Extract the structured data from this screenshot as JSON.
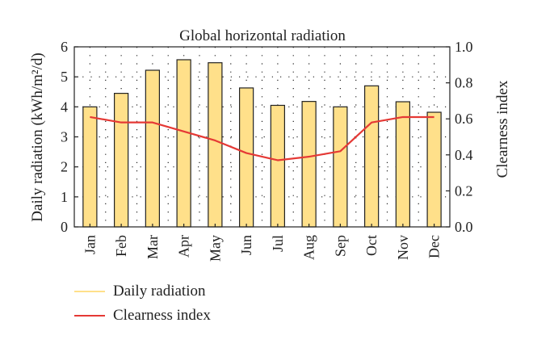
{
  "chart_data": {
    "type": "bar",
    "title": "Global horizontal radiation",
    "categories": [
      "Jan",
      "Feb",
      "Mar",
      "Apr",
      "May",
      "Jun",
      "Jul",
      "Aug",
      "Sep",
      "Oct",
      "Nov",
      "Dec"
    ],
    "ylabel_left": "Daily radiation (kWh/m²/d)",
    "ylabel_right": "Clearness index",
    "ylim_left": [
      0,
      6
    ],
    "ylim_right": [
      0.0,
      1.0
    ],
    "yticks_left": [
      "0",
      "1",
      "2",
      "3",
      "4",
      "5",
      "6"
    ],
    "yticks_right": [
      "0.0",
      "0.2",
      "0.4",
      "0.6",
      "0.8",
      "1.0"
    ],
    "grid": "dotted",
    "legend_position": "bottom-left",
    "series": [
      {
        "name": "Daily radiation",
        "axis": "left",
        "kind": "bar",
        "color": "#FFE08A",
        "values": [
          4.0,
          4.45,
          5.22,
          5.57,
          5.47,
          4.63,
          4.05,
          4.18,
          4.0,
          4.7,
          4.17,
          3.82
        ]
      },
      {
        "name": "Clearness index",
        "axis": "right",
        "kind": "line",
        "color": "#E53935",
        "values": [
          0.61,
          0.58,
          0.58,
          0.53,
          0.48,
          0.41,
          0.37,
          0.39,
          0.42,
          0.58,
          0.61,
          0.61
        ]
      }
    ]
  }
}
